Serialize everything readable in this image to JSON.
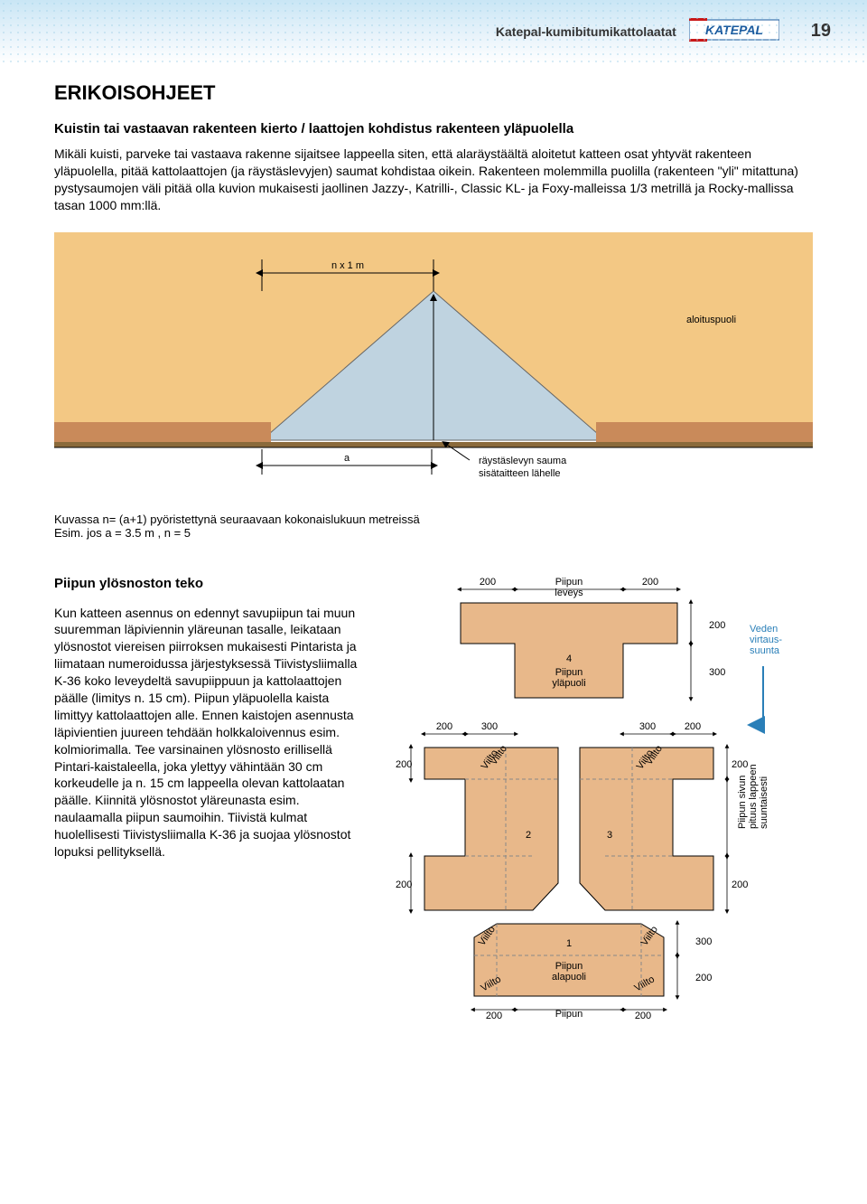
{
  "header": {
    "breadcrumb": "Katepal-kumibitumikattolaatat",
    "logo_text": "KATEPAL",
    "page_number": "19"
  },
  "main": {
    "heading": "ERIKOISOHJEET",
    "subtitle": "Kuistin tai vastaavan rakenteen kierto / laattojen kohdistus rakenteen yläpuolella",
    "paragraph": "Mikäli kuisti, parveke tai vastaava rakenne sijaitsee lappeella siten, että alaräystäältä aloitetut katteen osat yhtyvät rakenteen yläpuolella, pitää kattolaattojen (ja räystäslevyjen) saumat kohdistaa oikein. Rakenteen molemmilla puolilla (rakenteen \"yli\" mitattuna) pystysaumojen väli pitää olla kuvion mukaisesti jaollinen Jazzy-, Katrilli-, Classic KL- ja Foxy-malleissa 1/3 metrillä ja Rocky-mallissa tasan 1000 mm:llä."
  },
  "diagram1": {
    "roof_color": "#f3c884",
    "brick_color": "#c98a5a",
    "sky_color": "#bfd3e0",
    "eave_color": "#8a6a3b",
    "label_nxm": "n x 1 m",
    "label_aloituspuoli": "aloituspuoli",
    "label_a": "a",
    "label_raystas": "räystäslevyn sauma",
    "label_sisataitteen": "sisätaitteen lähelle"
  },
  "caption": {
    "line1": "Kuvassa n= (a+1) pyöristettynä seuraavaan kokonaislukuun metreissä",
    "line2": "Esim. jos a = 3.5 m , n = 5"
  },
  "section2": {
    "title": "Piipun ylösnoston teko",
    "paragraph": "Kun katteen asennus on edennyt savupiipun tai muun suuremman läpiviennin yläreunan tasalle, leikataan ylösnostot viereisen piirroksen mukaisesti Pintarista ja liimataan numeroidussa järjestyksessä Tiivistysliimalla K-36 koko leveydeltä savupiippuun ja kattolaattojen päälle (limitys n. 15 cm). Piipun yläpuolella kaista limittyy kattolaattojen alle. Ennen kaistojen asennusta läpivientien juureen tehdään holkkaloivennus esim. kolmiorimalla. Tee varsinainen ylösnosto erillisellä Pintari-kaistaleella, joka ylettyy vähintään 30 cm korkeudelle ja n. 15 cm lappeella olevan kattolaatan päälle. Kiinnitä ylösnostot yläreunasta esim. naulaamalla piipun saumoihin. Tiivistä kulmat huolellisesti Tiivistysliimalla K-36 ja suojaa ylösnostot lopuksi pellityksellä."
  },
  "diagram2": {
    "fill_color": "#e8b88a",
    "stroke_color": "#000000",
    "dash_color": "#888888",
    "label_200": "200",
    "label_300": "300",
    "label_piipun_leveys": "Piipun\nleveys",
    "label_piipun_ylapuoli": "Piipun\nyläpuoli",
    "label_piipun_alapuoli": "Piipun\nalapuoli",
    "label_viilto": "Viilto",
    "label_veden": "Veden\nvirtaus-\nsuunta",
    "label_piipun_sivun": "Piipun sivun\npituus lappeen\nsuuntaisesti",
    "num_1": "1",
    "num_2": "2",
    "num_3": "3",
    "num_4": "4"
  },
  "colors": {
    "logo_blue": "#1a5a9e",
    "logo_red": "#c91818"
  }
}
